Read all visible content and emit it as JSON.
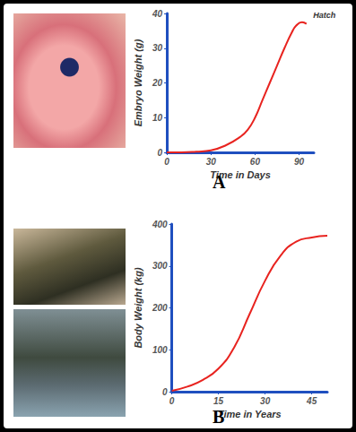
{
  "chart_data": [
    {
      "type": "line",
      "title": "A",
      "x_label": "Time in Days",
      "y_label": "Embryo Weight (g)",
      "x": [
        0,
        10,
        20,
        30,
        40,
        50,
        55,
        60,
        65,
        70,
        75,
        80,
        85,
        88,
        92,
        95
      ],
      "values": [
        0,
        0,
        0.2,
        0.6,
        2,
        4.5,
        6.5,
        10,
        15,
        20,
        25,
        30,
        34.5,
        36.5,
        37.5,
        37
      ],
      "color": "#e8231f",
      "xlim": [
        0,
        100
      ],
      "xticks": [
        0,
        30,
        60,
        90
      ],
      "ylim": [
        0,
        40
      ],
      "yticks": [
        0,
        10,
        20,
        30,
        40
      ],
      "grid": false,
      "annotations": [
        {
          "text": "Hatch",
          "x": 94,
          "y": 37.5
        }
      ]
    },
    {
      "type": "line",
      "title": "B",
      "x_label": "Time in Years",
      "y_label": "Body Weight (kg)",
      "x": [
        0,
        5,
        10,
        15,
        20,
        25,
        30,
        35,
        40,
        45,
        50
      ],
      "values": [
        2,
        12,
        28,
        55,
        105,
        185,
        265,
        325,
        358,
        368,
        372
      ],
      "color": "#e8231f",
      "xlim": [
        0,
        50
      ],
      "xticks": [
        0,
        15,
        30,
        45
      ],
      "ylim": [
        0,
        400
      ],
      "yticks": [
        0,
        100,
        200,
        300,
        400
      ],
      "grid": false
    }
  ]
}
